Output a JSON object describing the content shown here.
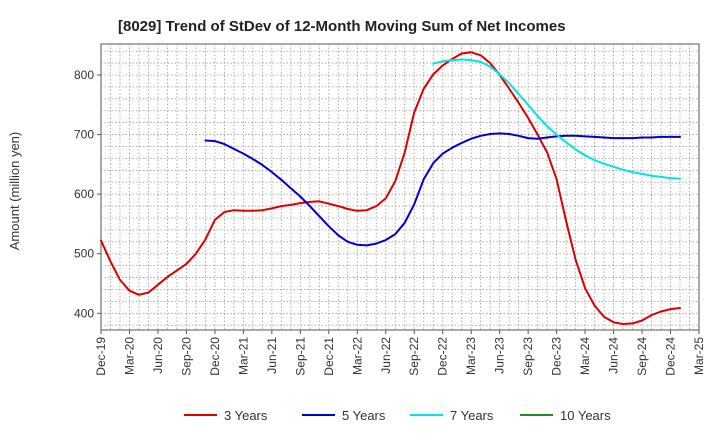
{
  "chart_data": {
    "type": "line",
    "title": "[8029]  Trend of StDev of 12-Month Moving Sum of Net Incomes",
    "ylabel": "Amount (million yen)",
    "xlabel": "",
    "ylim": [
      372,
      852
    ],
    "yticks": [
      400,
      500,
      600,
      700,
      800
    ],
    "xticks": [
      "Dec-19",
      "Mar-20",
      "Jun-20",
      "Sep-20",
      "Dec-20",
      "Mar-21",
      "Jun-21",
      "Sep-21",
      "Dec-21",
      "Mar-22",
      "Jun-22",
      "Sep-22",
      "Dec-22",
      "Mar-23",
      "Jun-23",
      "Sep-23",
      "Dec-23",
      "Mar-24",
      "Jun-24",
      "Sep-24",
      "Dec-24",
      "Mar-25"
    ],
    "grid": true,
    "legend_position": "bottom",
    "series": [
      {
        "name": "3 Years",
        "color": "#dd0000",
        "points": [
          [
            "Dec-19",
            522
          ],
          [
            "Jan-20",
            487
          ],
          [
            "Feb-20",
            456
          ],
          [
            "Mar-20",
            438
          ],
          [
            "Apr-20",
            431
          ],
          [
            "May-20",
            435
          ],
          [
            "Jun-20",
            448
          ],
          [
            "Jul-20",
            461
          ],
          [
            "Aug-20",
            472
          ],
          [
            "Sep-20",
            483
          ],
          [
            "Oct-20",
            500
          ],
          [
            "Nov-20",
            524
          ],
          [
            "Dec-20",
            557
          ],
          [
            "Jan-21",
            570
          ],
          [
            "Feb-21",
            573
          ],
          [
            "Mar-21",
            572
          ],
          [
            "Apr-21",
            572
          ],
          [
            "May-21",
            573
          ],
          [
            "Jun-21",
            576
          ],
          [
            "Jul-21",
            580
          ],
          [
            "Aug-21",
            582
          ],
          [
            "Sep-21",
            585
          ],
          [
            "Oct-21",
            587
          ],
          [
            "Nov-21",
            588
          ],
          [
            "Dec-21",
            584
          ],
          [
            "Jan-22",
            580
          ],
          [
            "Feb-22",
            575
          ],
          [
            "Mar-22",
            572
          ],
          [
            "Apr-22",
            573
          ],
          [
            "May-22",
            580
          ],
          [
            "Jun-22",
            593
          ],
          [
            "Jul-22",
            622
          ],
          [
            "Aug-22",
            670
          ],
          [
            "Sep-22",
            737
          ],
          [
            "Oct-22",
            777
          ],
          [
            "Nov-22",
            801
          ],
          [
            "Dec-22",
            816
          ],
          [
            "Jan-23",
            827
          ],
          [
            "Feb-23",
            836
          ],
          [
            "Mar-23",
            838
          ],
          [
            "Apr-23",
            833
          ],
          [
            "May-23",
            820
          ],
          [
            "Jun-23",
            800
          ],
          [
            "Jul-23",
            777
          ],
          [
            "Aug-23",
            753
          ],
          [
            "Sep-23",
            728
          ],
          [
            "Oct-23",
            700
          ],
          [
            "Nov-23",
            670
          ],
          [
            "Dec-23",
            625
          ],
          [
            "Jan-24",
            555
          ],
          [
            "Feb-24",
            490
          ],
          [
            "Mar-24",
            442
          ],
          [
            "Apr-24",
            413
          ],
          [
            "May-24",
            394
          ],
          [
            "Jun-24",
            385
          ],
          [
            "Jul-24",
            382
          ],
          [
            "Aug-24",
            383
          ],
          [
            "Sep-24",
            388
          ],
          [
            "Oct-24",
            397
          ],
          [
            "Nov-24",
            403
          ],
          [
            "Dec-24",
            407
          ],
          [
            "Jan-25",
            409
          ]
        ]
      },
      {
        "name": "5 Years",
        "color": "#0000cc",
        "points": [
          [
            "Nov-20",
            690
          ],
          [
            "Dec-20",
            689
          ],
          [
            "Jan-21",
            684
          ],
          [
            "Feb-21",
            676
          ],
          [
            "Mar-21",
            668
          ],
          [
            "Apr-21",
            659
          ],
          [
            "May-21",
            649
          ],
          [
            "Jun-21",
            637
          ],
          [
            "Jul-21",
            624
          ],
          [
            "Aug-21",
            610
          ],
          [
            "Sep-21",
            596
          ],
          [
            "Oct-21",
            580
          ],
          [
            "Nov-21",
            563
          ],
          [
            "Dec-21",
            546
          ],
          [
            "Jan-22",
            531
          ],
          [
            "Feb-22",
            520
          ],
          [
            "Mar-22",
            515
          ],
          [
            "Apr-22",
            514
          ],
          [
            "May-22",
            517
          ],
          [
            "Jun-22",
            523
          ],
          [
            "Jul-22",
            533
          ],
          [
            "Aug-22",
            552
          ],
          [
            "Sep-22",
            583
          ],
          [
            "Oct-22",
            625
          ],
          [
            "Nov-22",
            652
          ],
          [
            "Dec-22",
            668
          ],
          [
            "Jan-23",
            678
          ],
          [
            "Feb-23",
            686
          ],
          [
            "Mar-23",
            693
          ],
          [
            "Apr-23",
            698
          ],
          [
            "May-23",
            701
          ],
          [
            "Jun-23",
            702
          ],
          [
            "Jul-23",
            701
          ],
          [
            "Aug-23",
            698
          ],
          [
            "Sep-23",
            694
          ],
          [
            "Oct-23",
            693
          ],
          [
            "Nov-23",
            695
          ],
          [
            "Dec-23",
            697
          ],
          [
            "Jan-24",
            698
          ],
          [
            "Feb-24",
            698
          ],
          [
            "Mar-24",
            697
          ],
          [
            "Apr-24",
            696
          ],
          [
            "May-24",
            695
          ],
          [
            "Jun-24",
            694
          ],
          [
            "Jul-24",
            694
          ],
          [
            "Aug-24",
            694
          ],
          [
            "Sep-24",
            695
          ],
          [
            "Oct-24",
            695
          ],
          [
            "Nov-24",
            696
          ],
          [
            "Dec-24",
            696
          ],
          [
            "Jan-25",
            696
          ]
        ]
      },
      {
        "name": "7 Years",
        "color": "#00e5e5",
        "points": [
          [
            "Nov-22",
            819
          ],
          [
            "Dec-22",
            823
          ],
          [
            "Jan-23",
            825
          ],
          [
            "Feb-23",
            826
          ],
          [
            "Mar-23",
            825
          ],
          [
            "Apr-23",
            822
          ],
          [
            "May-23",
            814
          ],
          [
            "Jun-23",
            801
          ],
          [
            "Jul-23",
            786
          ],
          [
            "Aug-23",
            768
          ],
          [
            "Sep-23",
            750
          ],
          [
            "Oct-23",
            731
          ],
          [
            "Nov-23",
            714
          ],
          [
            "Dec-23",
            700
          ],
          [
            "Jan-24",
            687
          ],
          [
            "Feb-24",
            675
          ],
          [
            "Mar-24",
            665
          ],
          [
            "Apr-24",
            657
          ],
          [
            "May-24",
            651
          ],
          [
            "Jun-24",
            646
          ],
          [
            "Jul-24",
            641
          ],
          [
            "Aug-24",
            637
          ],
          [
            "Sep-24",
            634
          ],
          [
            "Oct-24",
            631
          ],
          [
            "Nov-24",
            629
          ],
          [
            "Dec-24",
            627
          ],
          [
            "Jan-25",
            626
          ]
        ]
      },
      {
        "name": "10 Years",
        "color": "#228b22",
        "points": []
      }
    ]
  }
}
